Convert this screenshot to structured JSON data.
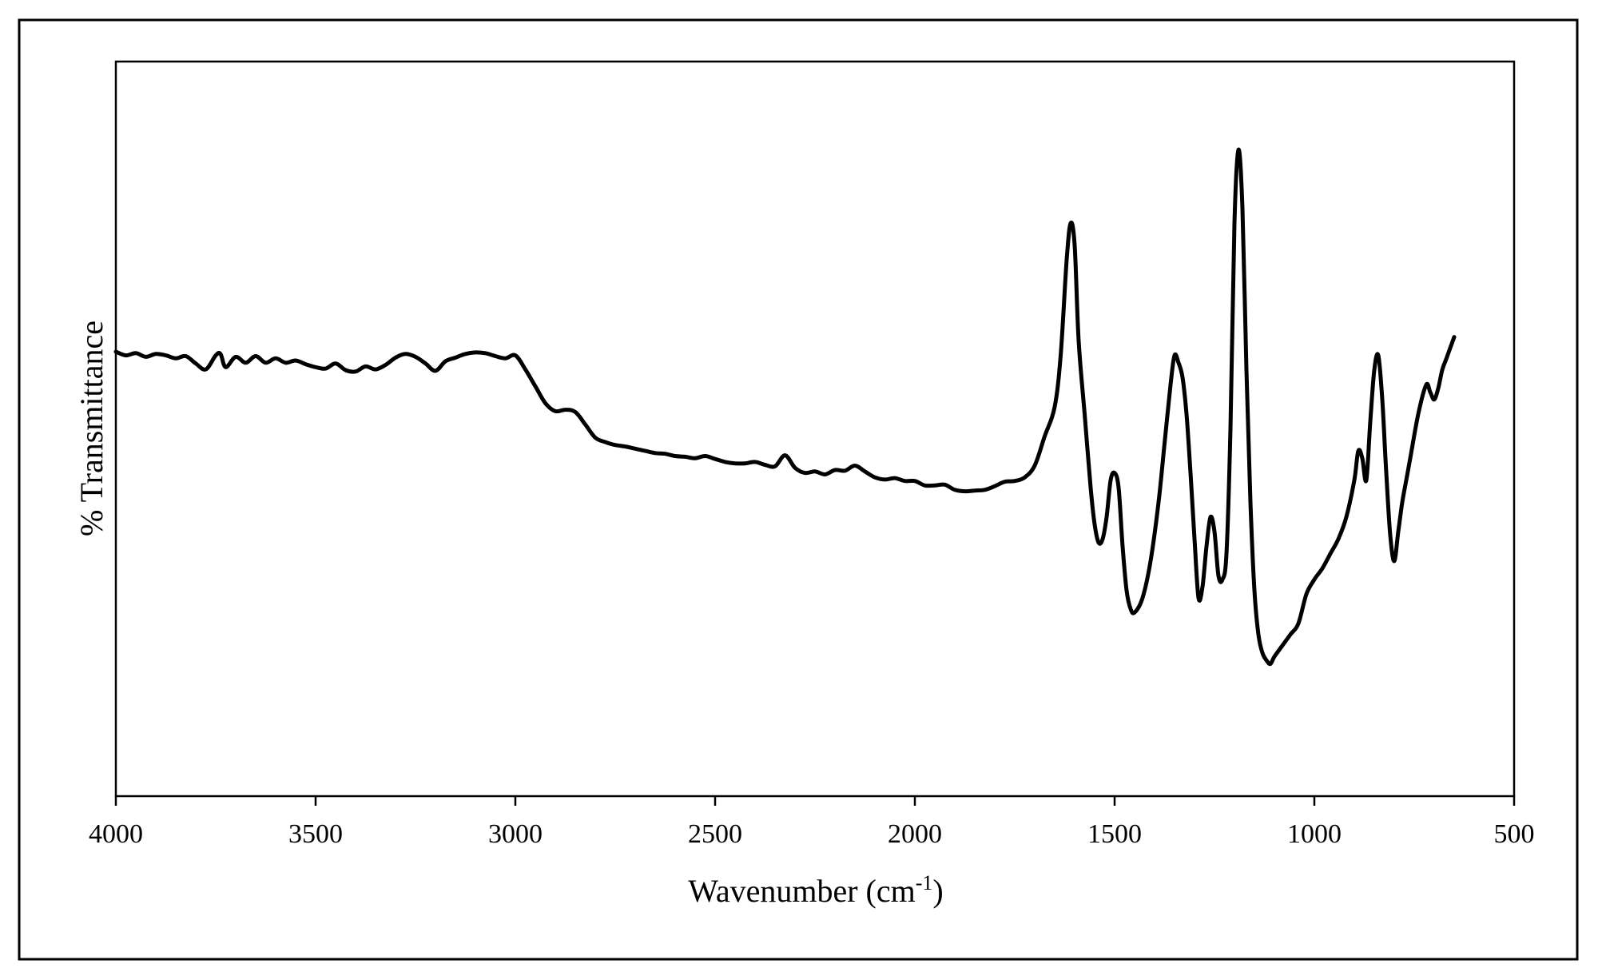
{
  "chart_data": {
    "type": "line",
    "title": "",
    "xlabel": "Wavenumber (cm",
    "xlabel_superscript": "-1",
    "xlabel_suffix": ")",
    "ylabel": "% Transmittance",
    "xlim": [
      4000,
      500
    ],
    "x_reversed": true,
    "ylim": [
      0,
      100
    ],
    "y_ticks_shown": false,
    "grid": false,
    "legend": "none",
    "x_ticks": [
      4000,
      3500,
      3000,
      2500,
      2000,
      1500,
      1000,
      500
    ],
    "x_tick_labels": [
      "4000",
      "3500",
      "3000",
      "2500",
      "2000",
      "1500",
      "1000",
      "500"
    ],
    "line_color": "#000000",
    "series": [
      {
        "x": [
          4000,
          3975,
          3950,
          3925,
          3900,
          3875,
          3850,
          3825,
          3800,
          3775,
          3750,
          3738,
          3725,
          3700,
          3675,
          3650,
          3625,
          3600,
          3575,
          3550,
          3525,
          3500,
          3475,
          3450,
          3425,
          3400,
          3375,
          3350,
          3325,
          3300,
          3275,
          3250,
          3225,
          3200,
          3175,
          3150,
          3125,
          3100,
          3075,
          3050,
          3025,
          3000,
          2975,
          2950,
          2925,
          2900,
          2875,
          2850,
          2825,
          2800,
          2775,
          2750,
          2725,
          2700,
          2675,
          2650,
          2625,
          2600,
          2575,
          2550,
          2525,
          2500,
          2475,
          2450,
          2425,
          2400,
          2375,
          2350,
          2325,
          2300,
          2275,
          2250,
          2225,
          2200,
          2175,
          2150,
          2125,
          2100,
          2075,
          2050,
          2025,
          2000,
          1975,
          1950,
          1925,
          1900,
          1875,
          1850,
          1825,
          1800,
          1775,
          1750,
          1725,
          1700,
          1675,
          1650,
          1635,
          1620,
          1610,
          1600,
          1590,
          1575,
          1560,
          1550,
          1540,
          1530,
          1520,
          1510,
          1500,
          1490,
          1480,
          1470,
          1460,
          1450,
          1430,
          1410,
          1390,
          1375,
          1360,
          1350,
          1340,
          1330,
          1320,
          1310,
          1300,
          1290,
          1280,
          1270,
          1260,
          1250,
          1240,
          1230,
          1220,
          1210,
          1200,
          1190,
          1180,
          1170,
          1160,
          1150,
          1140,
          1130,
          1120,
          1110,
          1100,
          1080,
          1060,
          1040,
          1020,
          1000,
          980,
          960,
          940,
          920,
          900,
          890,
          880,
          870,
          860,
          850,
          840,
          830,
          820,
          810,
          800,
          790,
          780,
          770,
          760,
          740,
          720,
          710,
          700,
          690,
          680,
          670,
          660,
          650
        ],
        "y": [
          60.5,
          60.0,
          60.3,
          59.8,
          60.2,
          60.0,
          59.6,
          59.9,
          58.9,
          58.1,
          60.0,
          60.2,
          58.4,
          59.8,
          59.0,
          59.9,
          59.0,
          59.6,
          59.0,
          59.3,
          58.8,
          58.4,
          58.2,
          58.9,
          58.0,
          57.8,
          58.5,
          58.1,
          58.7,
          59.7,
          60.2,
          59.8,
          58.9,
          57.9,
          59.2,
          59.7,
          60.2,
          60.4,
          60.3,
          59.9,
          59.6,
          60.0,
          58.1,
          55.8,
          53.5,
          52.4,
          52.6,
          52.3,
          50.6,
          48.8,
          48.2,
          47.8,
          47.6,
          47.3,
          47.0,
          46.7,
          46.6,
          46.3,
          46.2,
          46.0,
          46.3,
          45.9,
          45.5,
          45.3,
          45.3,
          45.5,
          45.1,
          44.9,
          46.4,
          44.7,
          44.0,
          44.2,
          43.8,
          44.4,
          44.3,
          45.0,
          44.2,
          43.4,
          43.1,
          43.3,
          42.9,
          42.9,
          42.3,
          42.3,
          42.4,
          41.7,
          41.5,
          41.6,
          41.7,
          42.2,
          42.8,
          42.9,
          43.4,
          45.0,
          49.0,
          53.0,
          60.0,
          73.0,
          78.0,
          75.0,
          62.0,
          52.0,
          42.0,
          37.0,
          34.5,
          35.0,
          38.0,
          43.0,
          44.0,
          42.0,
          34.0,
          28.0,
          25.5,
          25.0,
          27.0,
          32.0,
          40.0,
          48.0,
          56.0,
          60.0,
          59.0,
          57.0,
          52.0,
          44.0,
          35.0,
          27.0,
          28.5,
          34.0,
          38.0,
          36.0,
          30.0,
          29.5,
          33.0,
          50.0,
          78.0,
          88.0,
          80.0,
          58.0,
          40.0,
          28.0,
          22.0,
          19.5,
          18.5,
          18.0,
          19.0,
          20.5,
          22.0,
          23.5,
          27.5,
          29.5,
          31.0,
          33.0,
          35.0,
          38.0,
          43.0,
          47.0,
          46.0,
          43.0,
          51.0,
          58.0,
          60.0,
          54.0,
          44.0,
          35.5,
          32.0,
          36.0,
          40.0,
          43.0,
          46.0,
          52.0,
          56.0,
          55.0,
          54.0,
          55.5,
          58.0,
          59.5,
          61.0,
          62.5
        ]
      }
    ]
  }
}
